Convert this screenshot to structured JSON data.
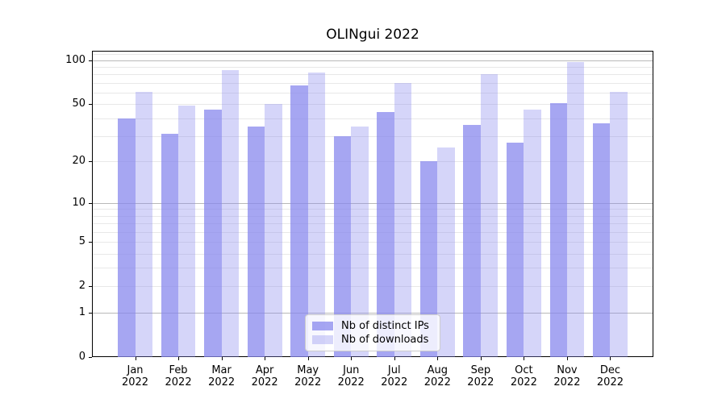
{
  "chart_data": {
    "type": "bar",
    "title": "OLINgui 2022",
    "categories": [
      "Jan",
      "Feb",
      "Mar",
      "Apr",
      "May",
      "Jun",
      "Jul",
      "Aug",
      "Sep",
      "Oct",
      "Nov",
      "Dec"
    ],
    "x_year_label": "2022",
    "series": [
      {
        "key": "ips",
        "name": "Nb of distinct IPs",
        "color": "rgba(136,136,238,0.75)",
        "values": [
          40,
          31,
          46,
          35,
          67,
          30,
          44,
          20,
          36,
          27,
          51,
          37
        ]
      },
      {
        "key": "downloads",
        "name": "Nb of downloads",
        "color": "rgba(136,136,238,0.35)",
        "values": [
          61,
          49,
          86,
          50,
          82,
          35,
          70,
          25,
          80,
          46,
          97,
          61
        ]
      }
    ],
    "y_axis": {
      "scale": "symlog",
      "tick_values": [
        0,
        1,
        2,
        5,
        10,
        20,
        50,
        100
      ],
      "max": 116,
      "major_gridlines": [
        1,
        10,
        100
      ],
      "minor_gridlines": [
        2,
        3,
        4,
        5,
        6,
        7,
        8,
        9,
        20,
        30,
        40,
        50,
        60,
        70,
        80,
        90,
        110
      ]
    },
    "legend": {
      "position": "lower-center"
    },
    "grid": true
  },
  "styles": {
    "bar_base_color": "#8888ee",
    "grid_major_color": "#b9b9b9",
    "grid_minor_color": "#e8e8e8",
    "axis_color": "#000000",
    "text_color": "#000000",
    "legend_bg": "rgba(255,255,255,0.8)",
    "legend_border": "#cccccc",
    "background": "#ffffff"
  }
}
